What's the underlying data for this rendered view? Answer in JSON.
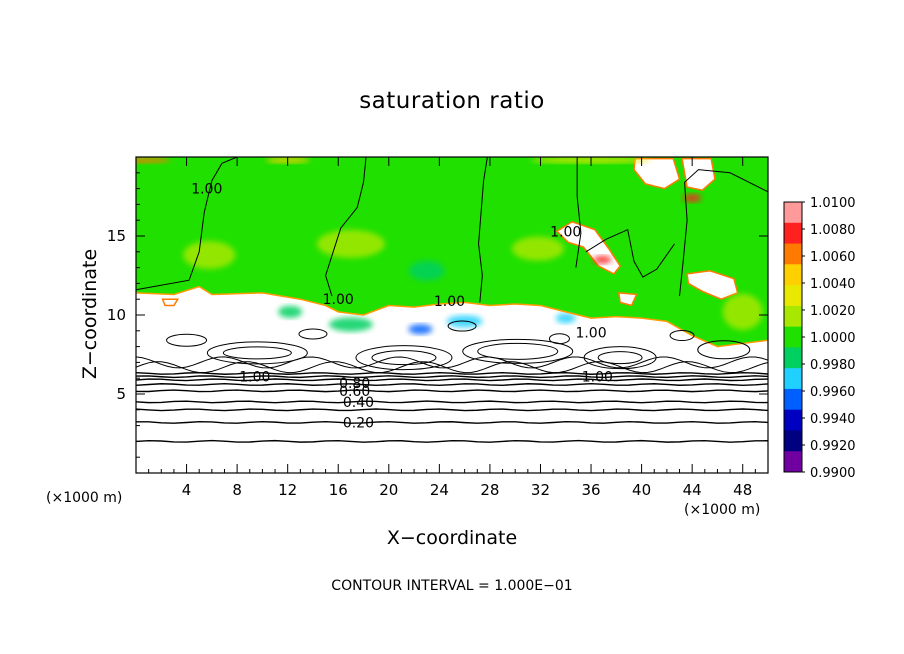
{
  "chart_data": {
    "type": "heatmap",
    "title": "saturation ratio",
    "xlabel": "X−coordinate",
    "ylabel": "Z−coordinate",
    "x_unit_left": "(×1000 m)",
    "x_unit_right": "(×1000 m)",
    "footer": "CONTOUR INTERVAL = 1.000E−01",
    "xlim": [
      0,
      50
    ],
    "ylim": [
      0,
      20
    ],
    "x_ticks": [
      4,
      8,
      12,
      16,
      20,
      24,
      28,
      32,
      36,
      40,
      44,
      48
    ],
    "y_ticks": [
      5,
      10,
      15
    ],
    "colorbar": {
      "labels": [
        "1.0100",
        "1.0080",
        "1.0060",
        "1.0040",
        "1.0020",
        "1.0000",
        "0.9980",
        "0.9960",
        "0.9940",
        "0.9920",
        "0.9900"
      ],
      "colors": [
        "#ff9a9a",
        "#ff2020",
        "#ff7a00",
        "#ffd000",
        "#e8e800",
        "#a8e800",
        "#20e000",
        "#00d060",
        "#20d0ff",
        "#0060ff",
        "#0000c0",
        "#000080",
        "#7000a0"
      ]
    },
    "contour_labels": [
      {
        "text": "1.00",
        "x": 5.6,
        "y": 18.0
      },
      {
        "text": "1.00",
        "x": 16.0,
        "y": 11.0
      },
      {
        "text": "1.00",
        "x": 24.8,
        "y": 10.9
      },
      {
        "text": "1.00",
        "x": 34.0,
        "y": 15.3
      },
      {
        "text": "1.00",
        "x": 36.0,
        "y": 8.9
      },
      {
        "text": "1.00",
        "x": 9.4,
        "y": 6.1
      },
      {
        "text": "1.00",
        "x": 36.5,
        "y": 6.1
      },
      {
        "text": "0.80",
        "x": 17.3,
        "y": 5.7
      },
      {
        "text": "0.60",
        "x": 17.3,
        "y": 5.2
      },
      {
        "text": "0.40",
        "x": 17.6,
        "y": 4.5
      },
      {
        "text": "0.20",
        "x": 17.6,
        "y": 3.2
      }
    ]
  }
}
